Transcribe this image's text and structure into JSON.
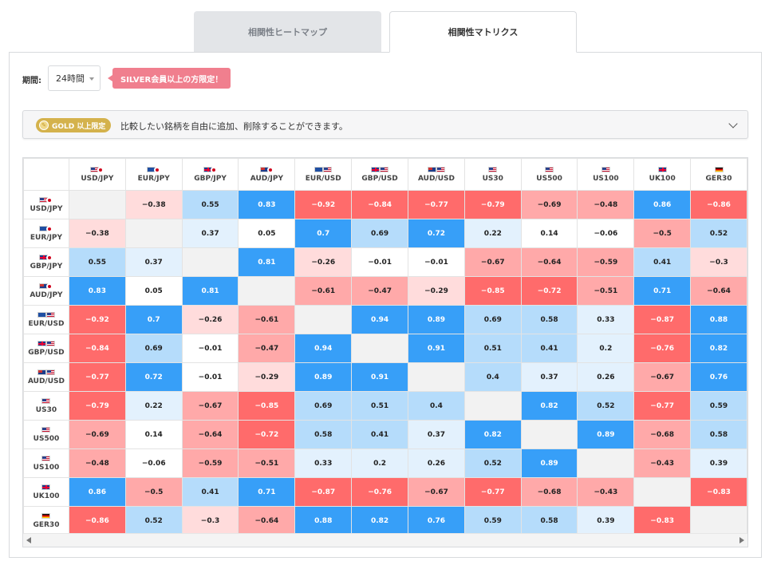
{
  "tabs": [
    {
      "label": "相関性ヒートマップ",
      "active": false
    },
    {
      "label": "相関性マトリクス",
      "active": true
    }
  ],
  "period": {
    "label": "期間:",
    "value": "24時間"
  },
  "silver_notice": "SILVER会員以上の方限定！",
  "gold": {
    "badge_label": "GOLD 以上限定",
    "text": "比較したい銘柄を自由に追加、削除することができます。"
  },
  "colors": {
    "strong_negative": "#ff6b6b",
    "negative": "#ffa9a9",
    "weak_negative": "#ffdcdc",
    "neutral": "#ffffff",
    "weak_positive": "#e3f1fd",
    "positive": "#b5dcfb",
    "strong_positive": "#379ff8",
    "diagonal": "#f2f2f2"
  },
  "instruments": [
    {
      "label": "USD/JPY",
      "flags": [
        "us",
        "jp"
      ]
    },
    {
      "label": "EUR/JPY",
      "flags": [
        "eu",
        "jp"
      ]
    },
    {
      "label": "GBP/JPY",
      "flags": [
        "uk",
        "jp"
      ]
    },
    {
      "label": "AUD/JPY",
      "flags": [
        "au",
        "jp"
      ]
    },
    {
      "label": "EUR/USD",
      "flags": [
        "eu",
        "us"
      ]
    },
    {
      "label": "GBP/USD",
      "flags": [
        "uk",
        "us"
      ]
    },
    {
      "label": "AUD/USD",
      "flags": [
        "au",
        "us"
      ]
    },
    {
      "label": "US30",
      "flags": [
        "us"
      ]
    },
    {
      "label": "US500",
      "flags": [
        "us"
      ]
    },
    {
      "label": "US100",
      "flags": [
        "us"
      ]
    },
    {
      "label": "UK100",
      "flags": [
        "uk"
      ]
    },
    {
      "label": "GER30",
      "flags": [
        "de"
      ]
    }
  ],
  "chart_data": {
    "type": "heatmap",
    "title": "",
    "x": [
      "USD/JPY",
      "EUR/JPY",
      "GBP/JPY",
      "AUD/JPY",
      "EUR/USD",
      "GBP/USD",
      "AUD/USD",
      "US30",
      "US500",
      "US100",
      "UK100",
      "GER30"
    ],
    "y": [
      "USD/JPY",
      "EUR/JPY",
      "GBP/JPY",
      "AUD/JPY",
      "EUR/USD",
      "GBP/USD",
      "AUD/USD",
      "US30",
      "US500",
      "US100",
      "UK100",
      "GER30"
    ],
    "values": [
      [
        null,
        -0.38,
        0.55,
        0.83,
        -0.92,
        -0.84,
        -0.77,
        -0.79,
        -0.69,
        -0.48,
        0.86,
        -0.86
      ],
      [
        -0.38,
        null,
        0.37,
        0.05,
        0.7,
        0.69,
        0.72,
        0.22,
        0.14,
        -0.06,
        -0.5,
        0.52
      ],
      [
        0.55,
        0.37,
        null,
        0.81,
        -0.26,
        -0.01,
        -0.01,
        -0.67,
        -0.64,
        -0.59,
        0.41,
        -0.3
      ],
      [
        0.83,
        0.05,
        0.81,
        null,
        -0.61,
        -0.47,
        -0.29,
        -0.85,
        -0.72,
        -0.51,
        0.71,
        -0.64
      ],
      [
        -0.92,
        0.7,
        -0.26,
        -0.61,
        null,
        0.94,
        0.89,
        0.69,
        0.58,
        0.33,
        -0.87,
        0.88
      ],
      [
        -0.84,
        0.69,
        -0.01,
        -0.47,
        0.94,
        null,
        0.91,
        0.51,
        0.41,
        0.2,
        -0.76,
        0.82
      ],
      [
        -0.77,
        0.72,
        -0.01,
        -0.29,
        0.89,
        0.91,
        null,
        0.4,
        0.37,
        0.26,
        -0.67,
        0.76
      ],
      [
        -0.79,
        0.22,
        -0.67,
        -0.85,
        0.69,
        0.51,
        0.4,
        null,
        0.82,
        0.52,
        -0.77,
        0.59
      ],
      [
        -0.69,
        0.14,
        -0.64,
        -0.72,
        0.58,
        0.41,
        0.37,
        0.82,
        null,
        0.89,
        -0.68,
        0.58
      ],
      [
        -0.48,
        -0.06,
        -0.59,
        -0.51,
        0.33,
        0.2,
        0.26,
        0.52,
        0.89,
        null,
        -0.43,
        0.39
      ],
      [
        0.86,
        -0.5,
        0.41,
        0.71,
        -0.87,
        -0.76,
        -0.67,
        -0.77,
        -0.68,
        -0.43,
        null,
        -0.83
      ],
      [
        -0.86,
        0.52,
        -0.3,
        -0.64,
        0.88,
        0.82,
        0.76,
        0.59,
        0.58,
        0.39,
        -0.83,
        null
      ]
    ]
  }
}
